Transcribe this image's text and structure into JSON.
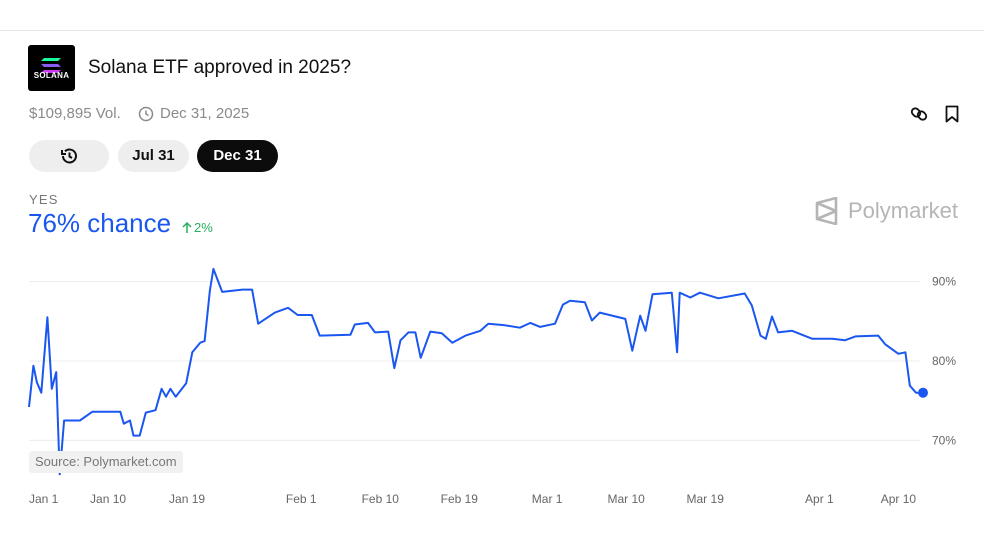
{
  "header": {
    "logo_text": "SOLANA",
    "title": "Solana ETF approved in 2025?",
    "volume": "$109,895 Vol.",
    "end_date": "Dec 31, 2025"
  },
  "date_tabs": [
    "Jul 31",
    "Dec 31"
  ],
  "outcome": {
    "label": "YES",
    "chance": "76% chance",
    "change": "2%"
  },
  "brand": "Polymarket",
  "source": "Source: Polymarket.com",
  "chart_data": {
    "type": "line",
    "color": "#1a56f0",
    "grid": true,
    "x": [
      0,
      0.5,
      0.9,
      1.4,
      2.1,
      2.6,
      3.1,
      3.5,
      4.0,
      5.8,
      7.2,
      10.4,
      10.8,
      11.5,
      11.9,
      12.6,
      13.3,
      14.4,
      15.1,
      15.6,
      16.1,
      16.7,
      17.9,
      18.6,
      19.5,
      20.0,
      20.6,
      21.0,
      22.0,
      24.3,
      25.4,
      26.1,
      28.0,
      29.5,
      30.6,
      32.2,
      33.1,
      36.6,
      37.1,
      38.6,
      39.4,
      40.9,
      41.6,
      42.3,
      43.2,
      44.0,
      44.6,
      45.7,
      47.0,
      48.2,
      49.7,
      51.4,
      52.3,
      54.2,
      55.9,
      57.1,
      58.2,
      59.9,
      60.8,
      61.6,
      63.3,
      64.1,
      65.0,
      67.9,
      68.7,
      69.6,
      70.2,
      71.0,
      73.2,
      73.8,
      74.1,
      75.3,
      76.4,
      78.5,
      81.5,
      82.3,
      83.3,
      83.9,
      84.6,
      85.3,
      86.9,
      89.2,
      91.5,
      92.9,
      94.1,
      96.7,
      97.5,
      99.0,
      99.8,
      100.3,
      101.0,
      101.8
    ],
    "values": [
      74.2,
      79.4,
      77.3,
      76.0,
      85.5,
      76.5,
      78.6,
      65.7,
      72.5,
      72.5,
      73.6,
      73.6,
      72.1,
      72.5,
      70.6,
      70.6,
      73.5,
      73.8,
      76.5,
      75.5,
      76.5,
      75.5,
      77.2,
      81.1,
      82.3,
      82.5,
      88.9,
      91.6,
      88.7,
      89.0,
      89.0,
      84.7,
      86.1,
      86.7,
      85.8,
      85.8,
      83.2,
      83.3,
      84.6,
      84.8,
      83.6,
      83.7,
      79.1,
      82.6,
      83.6,
      83.6,
      80.4,
      83.7,
      83.5,
      82.3,
      83.2,
      83.8,
      84.7,
      84.5,
      84.2,
      84.8,
      84.3,
      84.7,
      87.1,
      87.6,
      87.4,
      85.1,
      86.1,
      85.3,
      81.3,
      85.7,
      83.8,
      88.4,
      88.6,
      81.1,
      88.6,
      88.0,
      88.6,
      87.9,
      88.5,
      87.0,
      83.2,
      82.8,
      85.6,
      83.6,
      83.8,
      82.8,
      82.8,
      82.6,
      83.1,
      83.2,
      82.1,
      80.9,
      81.1,
      76.9,
      76.0,
      76.0
    ],
    "xlim": [
      0,
      101.8
    ],
    "ylim": [
      65,
      92.6
    ],
    "xticks": [
      {
        "value": 0,
        "label": "Jan 1"
      },
      {
        "value": 9,
        "label": "Jan 10"
      },
      {
        "value": 18,
        "label": "Jan 19"
      },
      {
        "value": 31,
        "label": "Feb 1"
      },
      {
        "value": 40,
        "label": "Feb 10"
      },
      {
        "value": 49,
        "label": "Feb 19"
      },
      {
        "value": 59,
        "label": "Mar 1"
      },
      {
        "value": 68,
        "label": "Mar 10"
      },
      {
        "value": 77,
        "label": "Mar 19"
      },
      {
        "value": 90,
        "label": "Apr 1"
      },
      {
        "value": 99,
        "label": "Apr 10"
      }
    ],
    "yticks": [
      {
        "value": 70,
        "label": "70%"
      },
      {
        "value": 80,
        "label": "80%"
      },
      {
        "value": 90,
        "label": "90%"
      }
    ]
  }
}
